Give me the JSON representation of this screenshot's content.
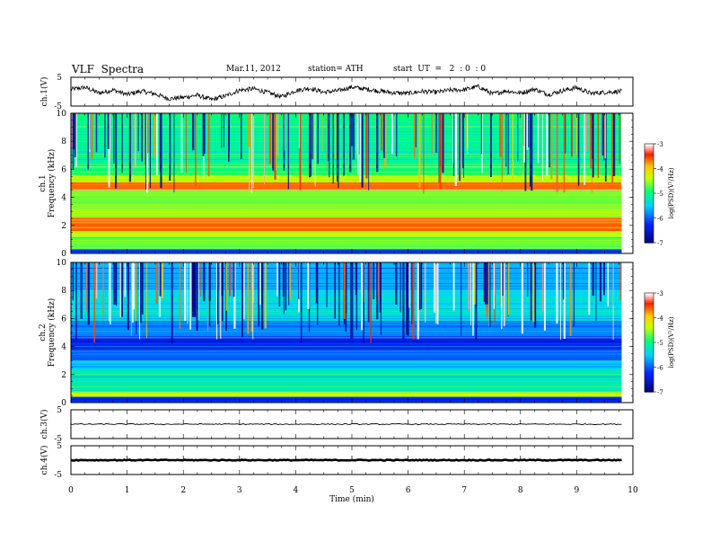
{
  "header": {
    "title": "VLF  Spectra",
    "date": "Mar.11, 2012",
    "station": "station= ATH",
    "start_ut": "start  UT  =   2  : 0  : 0"
  },
  "chart_data": [
    {
      "type": "line",
      "panel": "ch1-waveform",
      "ylabel": "ch.1(V)",
      "ylim": [
        -5,
        5
      ],
      "yticks": [
        5,
        -5
      ],
      "x": [
        0.0,
        0.25,
        0.5,
        0.75,
        1.0,
        1.25,
        1.5,
        1.75,
        2.0,
        2.25,
        2.5,
        2.75,
        3.0,
        3.25,
        3.5,
        3.75,
        4.0,
        4.25,
        4.5,
        4.75,
        5.0,
        5.25,
        5.5,
        5.75,
        6.0,
        6.25,
        6.5,
        6.75,
        7.0,
        7.25,
        7.5,
        7.75,
        8.0,
        8.25,
        8.5,
        8.75,
        9.0,
        9.25,
        9.5,
        9.8
      ],
      "y": [
        0.8,
        1.5,
        -0.5,
        0.6,
        -1.0,
        0.2,
        -0.8,
        -2.5,
        -2.0,
        -1.2,
        -2.8,
        -1.5,
        0.5,
        1.0,
        -0.3,
        -1.8,
        0.4,
        1.2,
        -0.2,
        0.3,
        1.6,
        0.9,
        0.2,
        -0.4,
        -0.6,
        0.1,
        -0.2,
        0.5,
        0.7,
        1.8,
        -0.8,
        0.3,
        -0.5,
        0.9,
        -1.0,
        0.4,
        1.4,
        -0.6,
        -0.2,
        0.1
      ]
    },
    {
      "type": "heatmap",
      "panel": "ch1-spectrogram",
      "ylabel": "ch.1 Frequency (kHz)",
      "ylim": [
        0,
        10
      ],
      "yticks": [
        0,
        2,
        4,
        6,
        8,
        10
      ],
      "colorbar": {
        "label": "log(PSD)(V²/Hz)",
        "range": [
          -7,
          -3
        ],
        "ticks": [
          -3,
          -4,
          -5,
          -6,
          -7
        ]
      },
      "bands": [
        {
          "f": [
            0.0,
            0.3
          ],
          "level": -6.2
        },
        {
          "f": [
            0.3,
            1.2
          ],
          "level": -4.7
        },
        {
          "f": [
            1.2,
            1.6
          ],
          "level": -4.3
        },
        {
          "f": [
            1.6,
            2.6
          ],
          "level": -3.6
        },
        {
          "f": [
            2.6,
            3.2
          ],
          "level": -4.5
        },
        {
          "f": [
            3.2,
            4.5
          ],
          "level": -4.6
        },
        {
          "f": [
            4.5,
            5.1
          ],
          "level": -3.6
        },
        {
          "f": [
            5.1,
            5.6
          ],
          "level": -4.4
        },
        {
          "f": [
            5.6,
            6.2
          ],
          "level": -4.9
        },
        {
          "f": [
            6.2,
            8.0
          ],
          "level": -5.1
        },
        {
          "f": [
            8.0,
            10.0
          ],
          "level": -5.0
        }
      ]
    },
    {
      "type": "heatmap",
      "panel": "ch2-spectrogram",
      "ylabel": "ch.2 Frequency (kHz)",
      "ylim": [
        0,
        10
      ],
      "yticks": [
        0,
        2,
        4,
        6,
        8,
        10
      ],
      "colorbar": {
        "label": "log(PSD)(V²/Hz)",
        "range": [
          -7,
          -3
        ],
        "ticks": [
          -3,
          -4,
          -5,
          -6,
          -7
        ]
      },
      "bands": [
        {
          "f": [
            0.0,
            0.4
          ],
          "level": -6.3
        },
        {
          "f": [
            0.4,
            0.8
          ],
          "level": -4.3
        },
        {
          "f": [
            0.8,
            2.4
          ],
          "level": -5.2
        },
        {
          "f": [
            2.4,
            3.0
          ],
          "level": -5.5
        },
        {
          "f": [
            3.0,
            3.8
          ],
          "level": -6.0
        },
        {
          "f": [
            3.8,
            4.6
          ],
          "level": -6.3
        },
        {
          "f": [
            4.6,
            5.8
          ],
          "level": -5.8
        },
        {
          "f": [
            5.8,
            6.8
          ],
          "level": -5.3
        },
        {
          "f": [
            6.8,
            8.0
          ],
          "level": -5.4
        },
        {
          "f": [
            8.0,
            10.0
          ],
          "level": -5.6
        }
      ]
    },
    {
      "type": "line",
      "panel": "ch3-waveform",
      "ylabel": "ch.3(V)",
      "ylim": [
        -5,
        5
      ],
      "yticks": [
        5,
        -5
      ],
      "x": [
        0.0,
        9.8
      ],
      "y": [
        0.0,
        0.0
      ]
    },
    {
      "type": "line",
      "panel": "ch4-waveform",
      "ylabel": "ch.4(V)",
      "ylim": [
        -5,
        5
      ],
      "yticks": [
        5,
        -5
      ],
      "x": [
        0.0,
        9.8
      ],
      "y": [
        0.0,
        0.0
      ]
    }
  ],
  "x_axis": {
    "label": "Time  (min)",
    "range": [
      0,
      10
    ],
    "ticks": [
      0,
      1,
      2,
      3,
      4,
      5,
      6,
      7,
      8,
      9,
      10
    ]
  }
}
